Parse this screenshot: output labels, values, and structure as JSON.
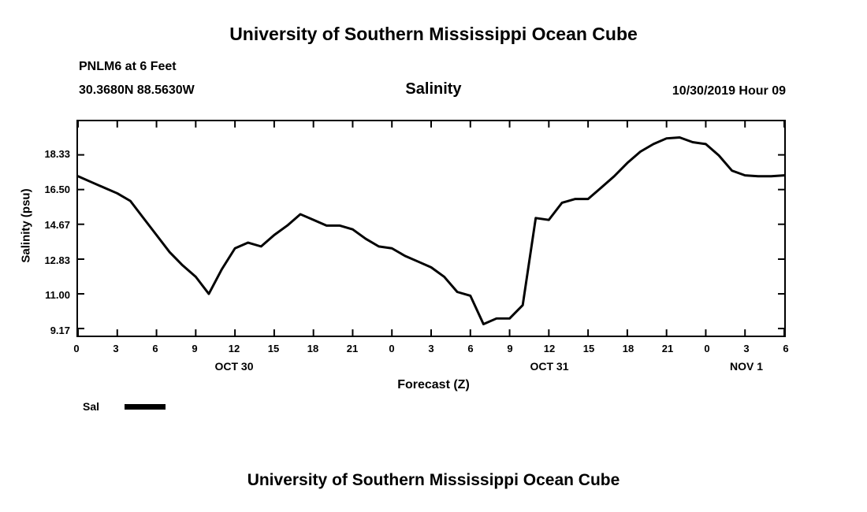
{
  "page": {
    "top_title": "University of Southern Mississippi Ocean Cube",
    "bottom_title": "University of Southern Mississippi Ocean Cube"
  },
  "header": {
    "station_line1": "PNLM6 at 6 Feet",
    "station_line2": "30.3680N 88.5630W",
    "plot_title": "Salinity",
    "datetime": "10/30/2019 Hour 09"
  },
  "legend": {
    "label": "Sal"
  },
  "chart_data": {
    "type": "line",
    "title": "Salinity",
    "xlabel": "Forecast (Z)",
    "ylabel": "Salinity (psu)",
    "x_hours_start": 0,
    "x_hours_end": 54,
    "x_tick_step": 3,
    "x_tick_labels": [
      "0",
      "3",
      "6",
      "9",
      "12",
      "15",
      "18",
      "21",
      "0",
      "3",
      "6",
      "9",
      "12",
      "15",
      "18",
      "21",
      "0",
      "3",
      "6"
    ],
    "day_labels": [
      {
        "label": "OCT 30",
        "hour": 12
      },
      {
        "label": "OCT 31",
        "hour": 36
      },
      {
        "label": "NOV 1",
        "hour": 51
      }
    ],
    "y_ticks": [
      "9.17",
      "11.00",
      "12.83",
      "14.67",
      "16.50",
      "18.33"
    ],
    "y_tick_values": [
      9.17,
      11.0,
      12.83,
      14.67,
      16.5,
      18.33
    ],
    "ylim": [
      8.8,
      20.1
    ],
    "grid": false,
    "legend_position": "bottom-left",
    "line_color": "#000000",
    "line_width": 3,
    "series": [
      {
        "name": "Sal",
        "x": [
          0,
          1,
          2,
          3,
          4,
          5,
          6,
          7,
          8,
          9,
          10,
          11,
          12,
          13,
          14,
          15,
          16,
          17,
          18,
          19,
          20,
          21,
          22,
          23,
          24,
          25,
          26,
          27,
          28,
          29,
          30,
          31,
          32,
          33,
          34,
          35,
          36,
          37,
          38,
          39,
          40,
          41,
          42,
          43,
          44,
          45,
          46,
          47,
          48,
          49,
          50,
          51,
          52,
          53,
          54
        ],
        "values": [
          17.2,
          16.9,
          16.6,
          16.3,
          15.9,
          15.0,
          14.1,
          13.2,
          12.5,
          11.9,
          11.0,
          12.3,
          13.4,
          13.7,
          13.5,
          14.1,
          14.6,
          15.2,
          14.9,
          14.6,
          14.6,
          14.4,
          13.9,
          13.5,
          13.4,
          13.0,
          12.7,
          12.4,
          11.9,
          11.1,
          10.9,
          9.4,
          9.7,
          9.7,
          10.4,
          15.0,
          14.9,
          15.8,
          16.0,
          16.0,
          16.6,
          17.2,
          17.9,
          18.5,
          18.9,
          19.2,
          19.25,
          19.0,
          18.9,
          18.3,
          17.5,
          17.25,
          17.2,
          17.2,
          17.25
        ]
      }
    ]
  }
}
